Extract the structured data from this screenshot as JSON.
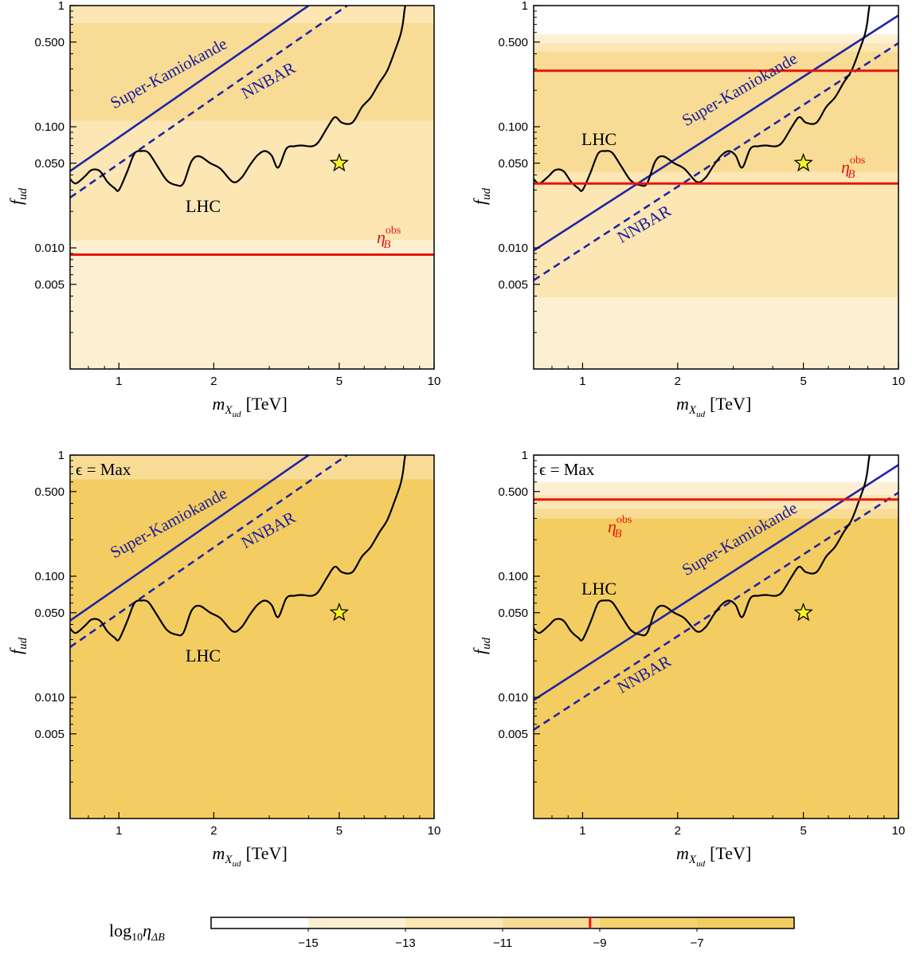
{
  "colors": {
    "band_levels": [
      "#ffffff",
      "#fdf0d2",
      "#fbe6b4",
      "#f8dc96",
      "#f5d36f",
      "#f3cd62"
    ],
    "experiment_line": "#1f24a6",
    "observed_line": "#e8160c",
    "lhc_curve": "#000000",
    "star_fill": "#f7f227"
  },
  "colorbar": {
    "label_main": "log",
    "label_sub": "10",
    "label_eta": "η",
    "label_eta_sub": "ΔB",
    "range": [
      -17,
      -5
    ],
    "boundaries": [
      -17,
      -15,
      -13,
      -11,
      -9,
      -7,
      -5
    ],
    "ticks": [
      -15,
      -13,
      -11,
      -9,
      -7
    ],
    "tick_labels": [
      "−15",
      "−13",
      "−11",
      "−9",
      "−7"
    ],
    "observed_marker": -9.2
  },
  "chart_data": [
    {
      "type": "area",
      "panel": "top-left",
      "corner_label": "",
      "xlabel": "m",
      "xlabel_sub": "X",
      "xlabel_subsub": "ud",
      "xlabel_unit": "[TeV]",
      "ylabel": "f",
      "ylabel_sub": "ud",
      "xscale": "log",
      "yscale": "log",
      "xlim": [
        0.7,
        10
      ],
      "ylim": [
        0.001,
        1
      ],
      "xticks": [
        1,
        2,
        5,
        10
      ],
      "xtick_labels": [
        "1",
        "2",
        "5",
        "10"
      ],
      "yticks": [
        0.005,
        0.01,
        0.05,
        0.1,
        0.5,
        1
      ],
      "ytick_labels": [
        "0.005",
        "0.010",
        "0.050",
        "0.100",
        "0.500",
        "1"
      ],
      "bands": [
        {
          "from": 0.001,
          "to": 0.0115,
          "level": 1
        },
        {
          "from": 0.0115,
          "to": 0.112,
          "level": 2
        },
        {
          "from": 0.112,
          "to": 0.72,
          "level": 3
        },
        {
          "from": 0.72,
          "to": 1,
          "level": 2
        }
      ],
      "series": [
        {
          "name": "Super-Kamiokande",
          "style": "solid",
          "x": [
            0.7,
            4.0
          ],
          "y": [
            0.043,
            1.0
          ]
        },
        {
          "name": "NNBAR",
          "style": "dashed",
          "x": [
            0.7,
            5.3
          ],
          "y": [
            0.026,
            1.0
          ]
        },
        {
          "name": "LHC",
          "style": "curve",
          "x": [
            0.7,
            0.73,
            0.78,
            0.82,
            0.87,
            0.92,
            0.97,
            1.0,
            1.06,
            1.12,
            1.18,
            1.24,
            1.32,
            1.42,
            1.52,
            1.6,
            1.7,
            1.8,
            1.95,
            2.1,
            2.3,
            2.45,
            2.6,
            2.75,
            2.9,
            3.05,
            3.2,
            3.4,
            3.6,
            3.8,
            4.1,
            4.3,
            4.6,
            4.85,
            5.1,
            5.5,
            5.9,
            6.3,
            6.7,
            7.1,
            7.5,
            7.8,
            7.95,
            8.05,
            8.1
          ],
          "y": [
            0.037,
            0.034,
            0.039,
            0.044,
            0.043,
            0.035,
            0.031,
            0.03,
            0.042,
            0.06,
            0.063,
            0.061,
            0.048,
            0.036,
            0.033,
            0.034,
            0.052,
            0.057,
            0.05,
            0.045,
            0.035,
            0.038,
            0.048,
            0.058,
            0.063,
            0.058,
            0.046,
            0.066,
            0.069,
            0.07,
            0.069,
            0.075,
            0.1,
            0.12,
            0.108,
            0.108,
            0.145,
            0.175,
            0.23,
            0.29,
            0.42,
            0.56,
            0.7,
            0.9,
            1.0
          ]
        },
        {
          "name": "η_B^obs",
          "style": "hline",
          "y": 0.0088
        }
      ],
      "benchmark_star": {
        "x": 5,
        "y": 0.05
      },
      "annotations": [
        {
          "text": "Super-Kamiokande",
          "kind": "blue"
        },
        {
          "text": "NNBAR",
          "kind": "blue"
        },
        {
          "text": "LHC",
          "kind": "black"
        },
        {
          "text": "η",
          "sup": "obs",
          "sub": "B",
          "kind": "red"
        }
      ]
    },
    {
      "type": "area",
      "panel": "top-right",
      "corner_label": "",
      "xlabel": "m",
      "xlabel_sub": "X",
      "xlabel_subsub": "ud",
      "xlabel_unit": "[TeV]",
      "ylabel": "f",
      "ylabel_sub": "ud",
      "xscale": "log",
      "yscale": "log",
      "xlim": [
        0.7,
        10
      ],
      "ylim": [
        0.001,
        1
      ],
      "xticks": [
        1,
        2,
        5,
        10
      ],
      "xtick_labels": [
        "1",
        "2",
        "5",
        "10"
      ],
      "yticks": [
        0.005,
        0.01,
        0.05,
        0.1,
        0.5,
        1
      ],
      "ytick_labels": [
        "0.005",
        "0.010",
        "0.050",
        "0.100",
        "0.500",
        "1"
      ],
      "bands": [
        {
          "from": 0.001,
          "to": 0.0039,
          "level": 1
        },
        {
          "from": 0.0039,
          "to": 0.042,
          "level": 2
        },
        {
          "from": 0.042,
          "to": 0.42,
          "level": 3
        },
        {
          "from": 0.42,
          "to": 0.49,
          "level": 2
        },
        {
          "from": 0.49,
          "to": 0.58,
          "level": 1
        },
        {
          "from": 0.58,
          "to": 1,
          "level": 0
        }
      ],
      "series": [
        {
          "name": "Super-Kamiokande",
          "style": "solid",
          "x": [
            0.7,
            10
          ],
          "y": [
            0.0095,
            0.83
          ]
        },
        {
          "name": "NNBAR",
          "style": "dashed",
          "x": [
            0.7,
            10
          ],
          "y": [
            0.0054,
            0.49
          ]
        },
        {
          "name": "LHC",
          "style": "curve",
          "x": [
            0.7,
            0.73,
            0.78,
            0.82,
            0.87,
            0.92,
            0.97,
            1.0,
            1.06,
            1.12,
            1.18,
            1.24,
            1.32,
            1.42,
            1.52,
            1.6,
            1.7,
            1.8,
            1.95,
            2.1,
            2.3,
            2.45,
            2.6,
            2.75,
            2.9,
            3.05,
            3.2,
            3.4,
            3.6,
            3.8,
            4.1,
            4.3,
            4.6,
            4.85,
            5.1,
            5.5,
            5.9,
            6.3,
            6.7,
            7.1,
            7.5,
            7.8,
            7.95,
            8.05,
            8.1
          ],
          "y": [
            0.037,
            0.034,
            0.039,
            0.044,
            0.043,
            0.035,
            0.031,
            0.03,
            0.042,
            0.06,
            0.063,
            0.061,
            0.048,
            0.036,
            0.033,
            0.034,
            0.052,
            0.057,
            0.05,
            0.045,
            0.035,
            0.038,
            0.048,
            0.058,
            0.063,
            0.058,
            0.046,
            0.066,
            0.069,
            0.07,
            0.069,
            0.075,
            0.1,
            0.12,
            0.108,
            0.108,
            0.145,
            0.175,
            0.23,
            0.29,
            0.42,
            0.56,
            0.7,
            0.9,
            1.0
          ]
        },
        {
          "name": "η_B^obs",
          "style": "hline",
          "y": 0.034
        },
        {
          "name": "η_B^obs",
          "style": "hline",
          "y": 0.29
        }
      ],
      "benchmark_star": {
        "x": 5,
        "y": 0.05
      },
      "annotations": [
        {
          "text": "Super-Kamiokande",
          "kind": "blue"
        },
        {
          "text": "NNBAR",
          "kind": "blue"
        },
        {
          "text": "LHC",
          "kind": "black"
        },
        {
          "text": "η",
          "sup": "obs",
          "sub": "B",
          "kind": "red"
        }
      ]
    },
    {
      "type": "area",
      "panel": "bottom-left",
      "corner_label": "ϵ = Max",
      "xlabel": "m",
      "xlabel_sub": "X",
      "xlabel_subsub": "ud",
      "xlabel_unit": "[TeV]",
      "ylabel": "f",
      "ylabel_sub": "ud",
      "xscale": "log",
      "yscale": "log",
      "xlim": [
        0.7,
        10
      ],
      "ylim": [
        0.001,
        1
      ],
      "xticks": [
        1,
        2,
        5,
        10
      ],
      "xtick_labels": [
        "1",
        "2",
        "5",
        "10"
      ],
      "yticks": [
        0.005,
        0.01,
        0.05,
        0.1,
        0.5,
        1
      ],
      "ytick_labels": [
        "0.005",
        "0.010",
        "0.050",
        "0.100",
        "0.500",
        "1"
      ],
      "bands": [
        {
          "from": 0.001,
          "to": 0.63,
          "level": 5
        },
        {
          "from": 0.63,
          "to": 1,
          "level": 3
        }
      ],
      "series": [
        {
          "name": "Super-Kamiokande",
          "style": "solid",
          "x": [
            0.7,
            4.0
          ],
          "y": [
            0.043,
            1.0
          ]
        },
        {
          "name": "NNBAR",
          "style": "dashed",
          "x": [
            0.7,
            5.3
          ],
          "y": [
            0.026,
            1.0
          ]
        },
        {
          "name": "LHC",
          "style": "curve",
          "x": [
            0.7,
            0.73,
            0.78,
            0.82,
            0.87,
            0.92,
            0.97,
            1.0,
            1.06,
            1.12,
            1.18,
            1.24,
            1.32,
            1.42,
            1.52,
            1.6,
            1.7,
            1.8,
            1.95,
            2.1,
            2.3,
            2.45,
            2.6,
            2.75,
            2.9,
            3.05,
            3.2,
            3.4,
            3.6,
            3.8,
            4.1,
            4.3,
            4.6,
            4.85,
            5.1,
            5.5,
            5.9,
            6.3,
            6.7,
            7.1,
            7.5,
            7.8,
            7.95,
            8.05,
            8.1
          ],
          "y": [
            0.037,
            0.034,
            0.039,
            0.044,
            0.043,
            0.035,
            0.031,
            0.03,
            0.042,
            0.06,
            0.063,
            0.061,
            0.048,
            0.036,
            0.033,
            0.034,
            0.052,
            0.057,
            0.05,
            0.045,
            0.035,
            0.038,
            0.048,
            0.058,
            0.063,
            0.058,
            0.046,
            0.066,
            0.069,
            0.07,
            0.069,
            0.075,
            0.1,
            0.12,
            0.108,
            0.108,
            0.145,
            0.175,
            0.23,
            0.29,
            0.42,
            0.56,
            0.7,
            0.9,
            1.0
          ]
        }
      ],
      "benchmark_star": {
        "x": 5,
        "y": 0.05
      },
      "annotations": [
        {
          "text": "Super-Kamiokande",
          "kind": "blue"
        },
        {
          "text": "NNBAR",
          "kind": "blue"
        },
        {
          "text": "LHC",
          "kind": "black"
        }
      ]
    },
    {
      "type": "area",
      "panel": "bottom-right",
      "corner_label": "ϵ = Max",
      "xlabel": "m",
      "xlabel_sub": "X",
      "xlabel_subsub": "ud",
      "xlabel_unit": "[TeV]",
      "ylabel": "f",
      "ylabel_sub": "ud",
      "xscale": "log",
      "yscale": "log",
      "xlim": [
        0.7,
        10
      ],
      "ylim": [
        0.001,
        1
      ],
      "xticks": [
        1,
        2,
        5,
        10
      ],
      "xtick_labels": [
        "1",
        "2",
        "5",
        "10"
      ],
      "yticks": [
        0.005,
        0.01,
        0.05,
        0.1,
        0.5,
        1
      ],
      "ytick_labels": [
        "0.005",
        "0.010",
        "0.050",
        "0.100",
        "0.500",
        "1"
      ],
      "bands": [
        {
          "from": 0.001,
          "to": 0.3,
          "level": 5
        },
        {
          "from": 0.3,
          "to": 0.36,
          "level": 3
        },
        {
          "from": 0.36,
          "to": 0.47,
          "level": 2
        },
        {
          "from": 0.47,
          "to": 0.6,
          "level": 1
        },
        {
          "from": 0.6,
          "to": 1,
          "level": 0
        }
      ],
      "series": [
        {
          "name": "Super-Kamiokande",
          "style": "solid",
          "x": [
            0.7,
            10
          ],
          "y": [
            0.0095,
            0.83
          ]
        },
        {
          "name": "NNBAR",
          "style": "dashed",
          "x": [
            0.7,
            10
          ],
          "y": [
            0.0054,
            0.49
          ]
        },
        {
          "name": "LHC",
          "style": "curve",
          "x": [
            0.7,
            0.73,
            0.78,
            0.82,
            0.87,
            0.92,
            0.97,
            1.0,
            1.06,
            1.12,
            1.18,
            1.24,
            1.32,
            1.42,
            1.52,
            1.6,
            1.7,
            1.8,
            1.95,
            2.1,
            2.3,
            2.45,
            2.6,
            2.75,
            2.9,
            3.05,
            3.2,
            3.4,
            3.6,
            3.8,
            4.1,
            4.3,
            4.6,
            4.85,
            5.1,
            5.5,
            5.9,
            6.3,
            6.7,
            7.1,
            7.5,
            7.8,
            7.95,
            8.05,
            8.1
          ],
          "y": [
            0.037,
            0.034,
            0.039,
            0.044,
            0.043,
            0.035,
            0.031,
            0.03,
            0.042,
            0.06,
            0.063,
            0.061,
            0.048,
            0.036,
            0.033,
            0.034,
            0.052,
            0.057,
            0.05,
            0.045,
            0.035,
            0.038,
            0.048,
            0.058,
            0.063,
            0.058,
            0.046,
            0.066,
            0.069,
            0.07,
            0.069,
            0.075,
            0.1,
            0.12,
            0.108,
            0.108,
            0.145,
            0.175,
            0.23,
            0.29,
            0.42,
            0.56,
            0.7,
            0.9,
            1.0
          ]
        },
        {
          "name": "η_B^obs",
          "style": "hline",
          "y": 0.43
        }
      ],
      "benchmark_star": {
        "x": 5,
        "y": 0.05
      },
      "annotations": [
        {
          "text": "Super-Kamiokande",
          "kind": "blue"
        },
        {
          "text": "NNBAR",
          "kind": "blue"
        },
        {
          "text": "LHC",
          "kind": "black"
        },
        {
          "text": "η",
          "sup": "obs",
          "sub": "B",
          "kind": "red"
        }
      ]
    }
  ]
}
